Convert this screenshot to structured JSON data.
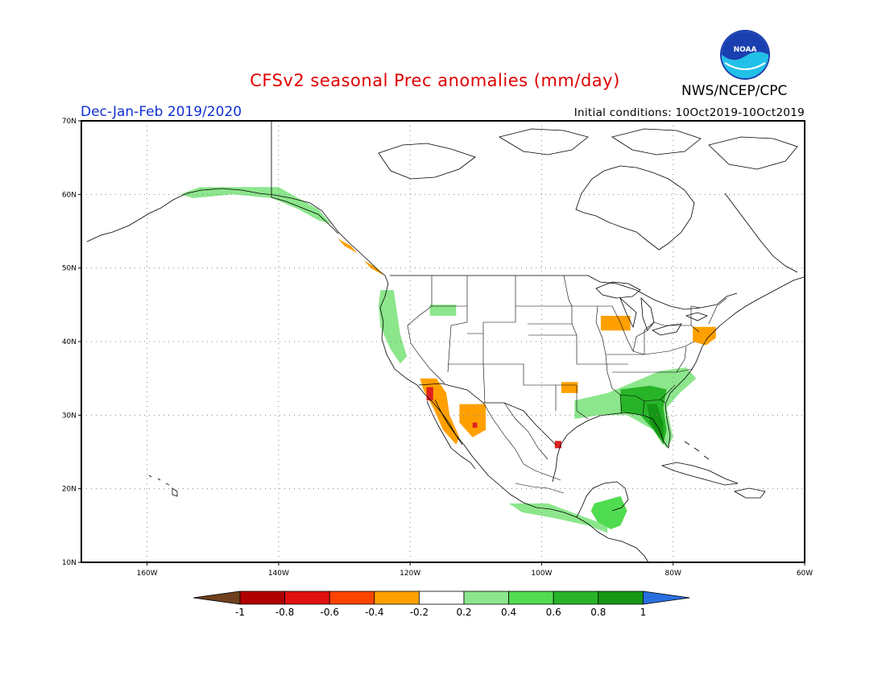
{
  "header": {
    "title": "CFSv2 seasonal Prec anomalies (mm/day)",
    "org": "NWS/NCEP/CPC",
    "season": "Dec-Jan-Feb 2019/2020",
    "initial_conditions": "Initial conditions: 10Oct2019-10Oct2019"
  },
  "logo": {
    "text": "NOAA"
  },
  "axes": {
    "lon_ticks": [
      "160W",
      "140W",
      "120W",
      "100W",
      "80W",
      "60W"
    ],
    "lat_ticks": [
      "10N",
      "20N",
      "30N",
      "40N",
      "50N",
      "60N",
      "70N"
    ],
    "lon_range": [
      -170,
      -60
    ],
    "lat_range": [
      10,
      70
    ]
  },
  "colorbar": {
    "labels": [
      "-1",
      "-0.8",
      "-0.6",
      "-0.4",
      "-0.2",
      "0.2",
      "0.4",
      "0.6",
      "0.8",
      "1"
    ],
    "colors": [
      "#70401e",
      "#b00000",
      "#e01010",
      "#ff4400",
      "#ffa000",
      "#ffffff",
      "#8ce68c",
      "#50dc50",
      "#28b428",
      "#159615",
      "#2a6fe0"
    ]
  },
  "colors": {
    "dry_strong": "#e02020",
    "dry": "#ffa000",
    "wet_light": "#8ce68c",
    "wet": "#50dc50",
    "wet_strong": "#28b428",
    "wet_max": "#159615",
    "title": "#e00000",
    "season": "#1030d0"
  },
  "anomaly_regions": [
    {
      "name": "gulf-of-alaska-coast",
      "level": 0.2,
      "points": [
        [
          -155,
          60
        ],
        [
          -152,
          61
        ],
        [
          -148,
          61
        ],
        [
          -143,
          61
        ],
        [
          -140,
          61
        ],
        [
          -137,
          59.5
        ],
        [
          -134,
          58
        ],
        [
          -132,
          56
        ],
        [
          -134,
          56.5
        ],
        [
          -137,
          58
        ],
        [
          -141,
          59.5
        ],
        [
          -147,
          60
        ],
        [
          -153,
          59.5
        ]
      ]
    },
    {
      "name": "bc-coast-dry",
      "level": -0.3,
      "points": [
        [
          -131,
          54
        ],
        [
          -129,
          53
        ],
        [
          -127,
          51
        ],
        [
          -125,
          50
        ],
        [
          -124,
          49
        ],
        [
          -126,
          50
        ],
        [
          -128,
          52
        ],
        [
          -130,
          53
        ]
      ]
    },
    {
      "name": "pacific-nw-wet",
      "level": 0.2,
      "points": [
        [
          -124.5,
          47
        ],
        [
          -122.5,
          47
        ],
        [
          -122,
          44
        ],
        [
          -121.5,
          41
        ],
        [
          -120.5,
          38
        ],
        [
          -121.5,
          37
        ],
        [
          -123,
          39
        ],
        [
          -124.5,
          42
        ],
        [
          -124.8,
          45
        ]
      ]
    },
    {
      "name": "idaho-wet",
      "level": 0.2,
      "points": [
        [
          -117,
          45
        ],
        [
          -113,
          45
        ],
        [
          -113,
          43.5
        ],
        [
          -117,
          43.5
        ]
      ]
    },
    {
      "name": "socal-baja-dry",
      "level": -0.3,
      "points": [
        [
          -118.5,
          35
        ],
        [
          -116,
          35
        ],
        [
          -114.5,
          33
        ],
        [
          -114,
          30
        ],
        [
          -112.5,
          27
        ],
        [
          -113,
          26
        ],
        [
          -115,
          28
        ],
        [
          -116.5,
          31
        ],
        [
          -118,
          33.5
        ]
      ]
    },
    {
      "name": "socal-strong-dry",
      "level": -0.5,
      "points": [
        [
          -117.5,
          33.8
        ],
        [
          -116.5,
          33.8
        ],
        [
          -116.5,
          32
        ],
        [
          -117.5,
          32
        ]
      ]
    },
    {
      "name": "nw-mexico-dry",
      "level": -0.3,
      "points": [
        [
          -112.5,
          31.5
        ],
        [
          -108.5,
          31.5
        ],
        [
          -108.5,
          28
        ],
        [
          -110.5,
          27
        ],
        [
          -112.5,
          29
        ]
      ]
    },
    {
      "name": "mexico-point-dry",
      "level": -0.5,
      "points": [
        [
          -110.5,
          29
        ],
        [
          -109.8,
          29
        ],
        [
          -109.8,
          28.3
        ],
        [
          -110.5,
          28.3
        ]
      ]
    },
    {
      "name": "texas-north-dry",
      "level": -0.3,
      "points": [
        [
          -97,
          34.5
        ],
        [
          -94.5,
          34.5
        ],
        [
          -94.5,
          33
        ],
        [
          -97,
          33
        ]
      ]
    },
    {
      "name": "texas-coast-dry",
      "level": -0.5,
      "points": [
        [
          -98,
          26.5
        ],
        [
          -97,
          26.5
        ],
        [
          -97,
          25.5
        ],
        [
          -98,
          25.5
        ]
      ]
    },
    {
      "name": "great-lakes-dry",
      "level": -0.3,
      "points": [
        [
          -91,
          43.5
        ],
        [
          -86.5,
          43.5
        ],
        [
          -86.5,
          41.5
        ],
        [
          -91,
          41.5
        ]
      ]
    },
    {
      "name": "northeast-dry",
      "level": -0.3,
      "points": [
        [
          -77,
          42
        ],
        [
          -73.5,
          42
        ],
        [
          -73.5,
          40.5
        ],
        [
          -75,
          39.5
        ],
        [
          -77,
          40
        ]
      ]
    },
    {
      "name": "southeast-wet",
      "level": 0.2,
      "points": [
        [
          -95,
          32
        ],
        [
          -90,
          33
        ],
        [
          -86,
          34.5
        ],
        [
          -82,
          36
        ],
        [
          -78,
          36.5
        ],
        [
          -76.5,
          35
        ],
        [
          -79,
          33
        ],
        [
          -81,
          31
        ],
        [
          -80,
          27
        ],
        [
          -81,
          25.5
        ],
        [
          -83,
          28
        ],
        [
          -87,
          30
        ],
        [
          -91,
          30
        ],
        [
          -95,
          29.5
        ]
      ]
    },
    {
      "name": "southeast-moderate",
      "level": 0.5,
      "points": [
        [
          -88,
          33.5
        ],
        [
          -83.5,
          34
        ],
        [
          -81,
          33.5
        ],
        [
          -81.5,
          31
        ],
        [
          -81,
          28
        ],
        [
          -81.5,
          26
        ],
        [
          -83,
          28
        ],
        [
          -85,
          30
        ],
        [
          -88,
          30.5
        ]
      ]
    },
    {
      "name": "florida-strong",
      "level": 0.7,
      "points": [
        [
          -84,
          31.5
        ],
        [
          -82.5,
          31.5
        ],
        [
          -81.5,
          29
        ],
        [
          -81.5,
          26.5
        ],
        [
          -82.5,
          27.5
        ],
        [
          -83.5,
          29
        ]
      ]
    },
    {
      "name": "mexico-south-wet",
      "level": 0.2,
      "points": [
        [
          -105,
          18
        ],
        [
          -99,
          18
        ],
        [
          -96,
          17
        ],
        [
          -93,
          16
        ],
        [
          -90,
          15
        ],
        [
          -90,
          14
        ],
        [
          -93,
          15
        ],
        [
          -98,
          16
        ],
        [
          -103,
          16.8
        ]
      ]
    },
    {
      "name": "central-america-wet",
      "level": 0.3,
      "points": [
        [
          -92,
          18
        ],
        [
          -88,
          19
        ],
        [
          -87,
          17
        ],
        [
          -88,
          15
        ],
        [
          -89.5,
          14.5
        ],
        [
          -91.5,
          15.5
        ],
        [
          -92.5,
          17
        ]
      ]
    }
  ]
}
